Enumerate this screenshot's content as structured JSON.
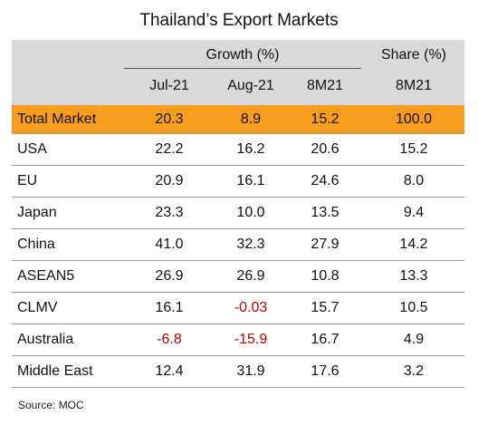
{
  "title": "Thailand’s Export Markets",
  "header": {
    "growth_label": "Growth (%)",
    "share_label": "Share (%)",
    "columns": [
      "Jul-21",
      "Aug-21",
      "8M21",
      "8M21"
    ]
  },
  "rows": [
    {
      "name": "Total Market",
      "jul": "20.3",
      "aug": "8.9",
      "ytd": "15.2",
      "share": "100.0"
    },
    {
      "name": "USA",
      "jul": "22.2",
      "aug": "16.2",
      "ytd": "20.6",
      "share": "15.2"
    },
    {
      "name": "EU",
      "jul": "20.9",
      "aug": "16.1",
      "ytd": "24.6",
      "share": "8.0"
    },
    {
      "name": "Japan",
      "jul": "23.3",
      "aug": "10.0",
      "ytd": "13.5",
      "share": "9.4"
    },
    {
      "name": "China",
      "jul": "41.0",
      "aug": "32.3",
      "ytd": "27.9",
      "share": "14.2"
    },
    {
      "name": "ASEAN5",
      "jul": "26.9",
      "aug": "26.9",
      "ytd": "10.8",
      "share": "13.3"
    },
    {
      "name": "CLMV",
      "jul": "16.1",
      "aug": "-0.03",
      "ytd": "15.7",
      "share": "10.5"
    },
    {
      "name": "Australia",
      "jul": "-6.8",
      "aug": "-15.9",
      "ytd": "16.7",
      "share": "4.9"
    },
    {
      "name": "Middle East",
      "jul": "12.4",
      "aug": "31.9",
      "ytd": "17.6",
      "share": "3.2"
    }
  ],
  "source": "Source: MOC",
  "colors": {
    "highlight": "#f79c1e",
    "header": "#d9d9d9",
    "negative": "#c00000"
  }
}
